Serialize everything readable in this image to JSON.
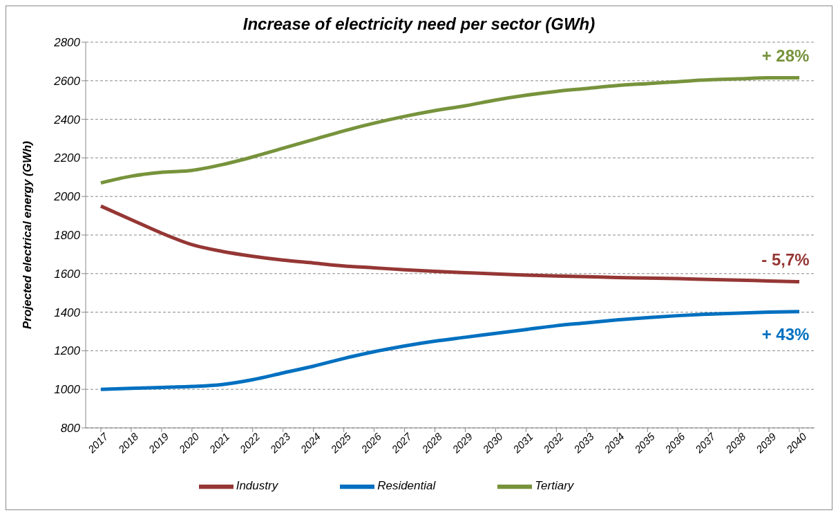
{
  "chart_data": {
    "type": "line",
    "title": "Increase of electricity need per sector (GWh)",
    "ylabel": "Projected electrical energy (GWh)",
    "categories": [
      "2017",
      "2018",
      "2019",
      "2020",
      "2021",
      "2022",
      "2023",
      "2024",
      "2025",
      "2026",
      "2027",
      "2028",
      "2029",
      "2030",
      "2031",
      "2032",
      "2033",
      "2034",
      "2035",
      "2036",
      "2037",
      "2038",
      "2039",
      "2040"
    ],
    "series": [
      {
        "name": "Tertiary",
        "color": "#77933c",
        "values": [
          2070,
          2105,
          2125,
          2135,
          2165,
          2205,
          2250,
          2295,
          2340,
          2380,
          2415,
          2445,
          2470,
          2500,
          2525,
          2545,
          2560,
          2575,
          2585,
          2595,
          2605,
          2610,
          2615,
          2615
        ]
      },
      {
        "name": "Residential",
        "color": "#0070c0",
        "values": [
          1000,
          1005,
          1010,
          1015,
          1025,
          1050,
          1085,
          1120,
          1160,
          1195,
          1225,
          1250,
          1270,
          1290,
          1310,
          1330,
          1345,
          1360,
          1372,
          1382,
          1390,
          1395,
          1400,
          1403
        ]
      },
      {
        "name": "Industry",
        "color": "#953735",
        "values": [
          1950,
          1880,
          1810,
          1750,
          1715,
          1690,
          1670,
          1655,
          1640,
          1630,
          1620,
          1612,
          1605,
          1598,
          1592,
          1588,
          1584,
          1580,
          1577,
          1574,
          1570,
          1566,
          1562,
          1558
        ]
      }
    ],
    "annotations": [
      "+ 28%",
      "+ 43%",
      "- 5,7%"
    ],
    "ylim": [
      800,
      2800
    ],
    "yticks": [
      800,
      1000,
      1200,
      1400,
      1600,
      1800,
      2000,
      2200,
      2400,
      2600,
      2800
    ],
    "grid": "y",
    "legend": "bottom",
    "marker": "none",
    "line_style": "solid"
  }
}
